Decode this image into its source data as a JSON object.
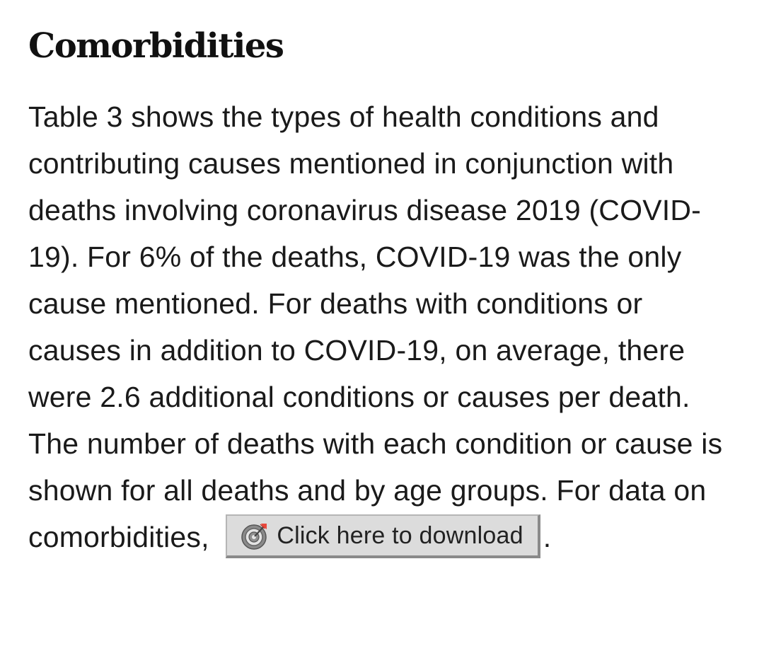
{
  "section": {
    "title": "Comorbidities",
    "body_text": "Table 3 shows the types of health conditions and contributing causes mentioned in conjunction with deaths involving coronavirus disease 2019 (COVID-19). For 6% of the deaths, COVID-19 was the only cause mentioned. For deaths with conditions or causes in addition to COVID-19, on average, there were 2.6 additional conditions or causes per death. The number of deaths with each condition or cause is shown for all deaths and by age groups. For data on comorbidities, ",
    "trailing_punctuation": "."
  },
  "download_button": {
    "label": "Click here to download",
    "icon": "download-target-icon",
    "accent_color": "#e8473b"
  }
}
